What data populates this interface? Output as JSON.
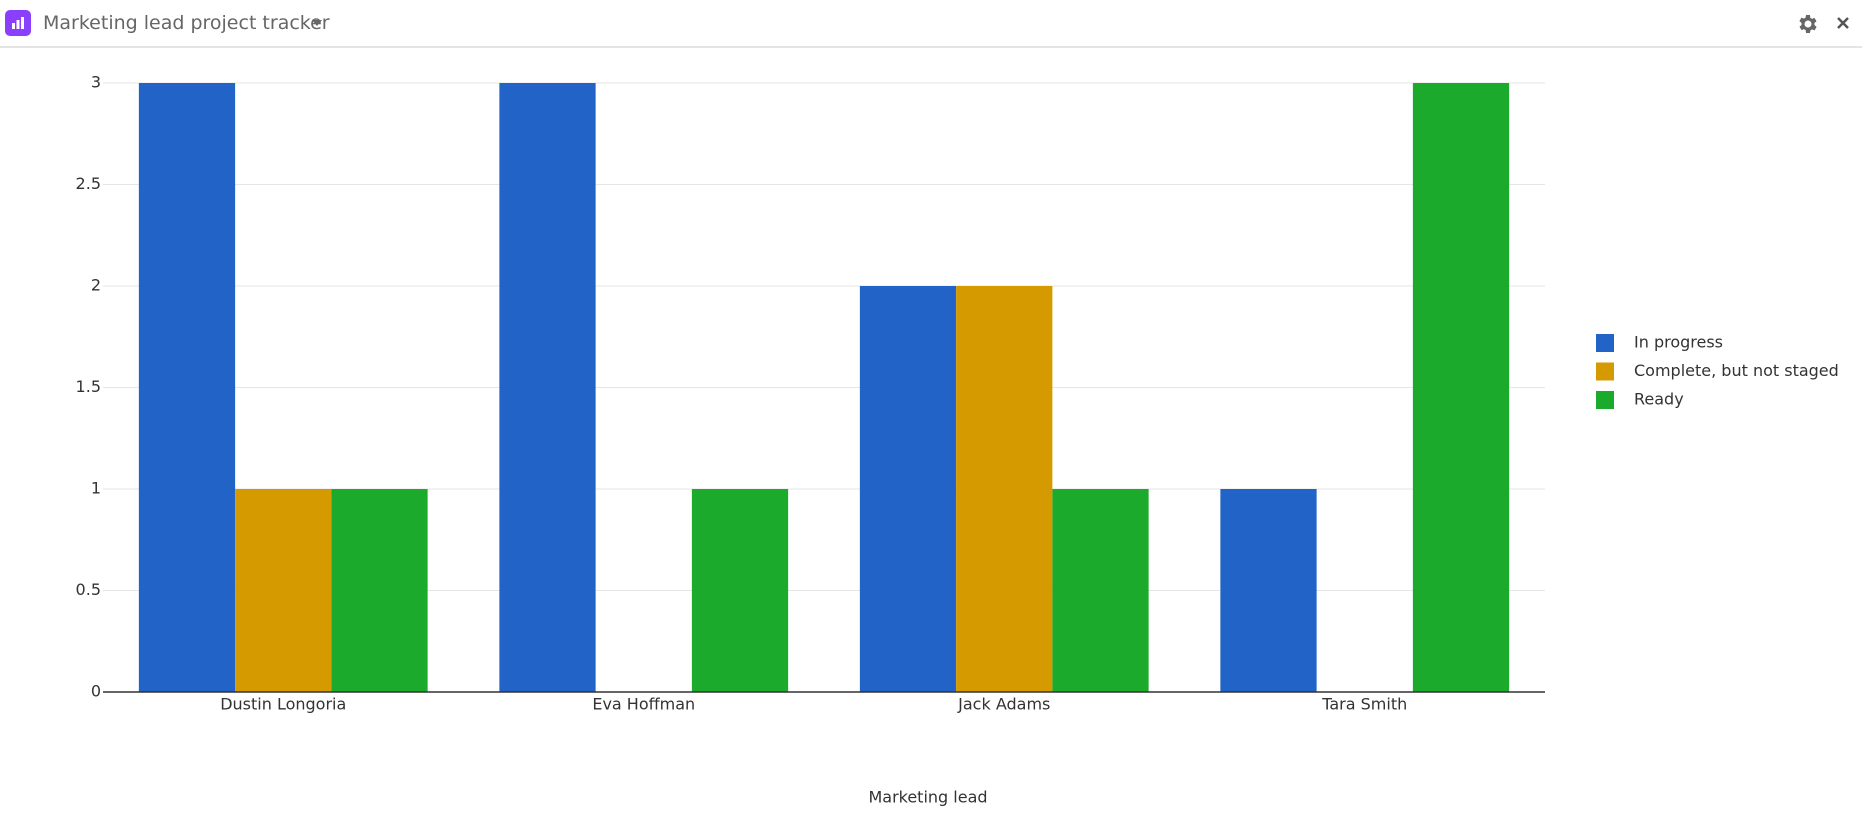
{
  "header": {
    "title": "Marketing lead project tracker"
  },
  "chart_data": {
    "type": "bar",
    "x_label": "Marketing lead",
    "categories": [
      "Dustin Longoria",
      "Eva Hoffman",
      "Jack Adams",
      "Tara Smith"
    ],
    "series": [
      {
        "name": "In progress",
        "color": "#2163c6",
        "values": [
          3,
          3,
          2,
          1
        ]
      },
      {
        "name": "Complete, but not staged",
        "color": "#d59a00",
        "values": [
          1,
          0,
          2,
          0
        ]
      },
      {
        "name": "Ready",
        "color": "#1caa2c",
        "values": [
          1,
          1,
          1,
          3
        ]
      }
    ],
    "ylim": [
      0,
      3
    ],
    "yticks": [
      0,
      0.5,
      1,
      1.5,
      2,
      2.5,
      3
    ],
    "grid": true,
    "legend": "right"
  }
}
